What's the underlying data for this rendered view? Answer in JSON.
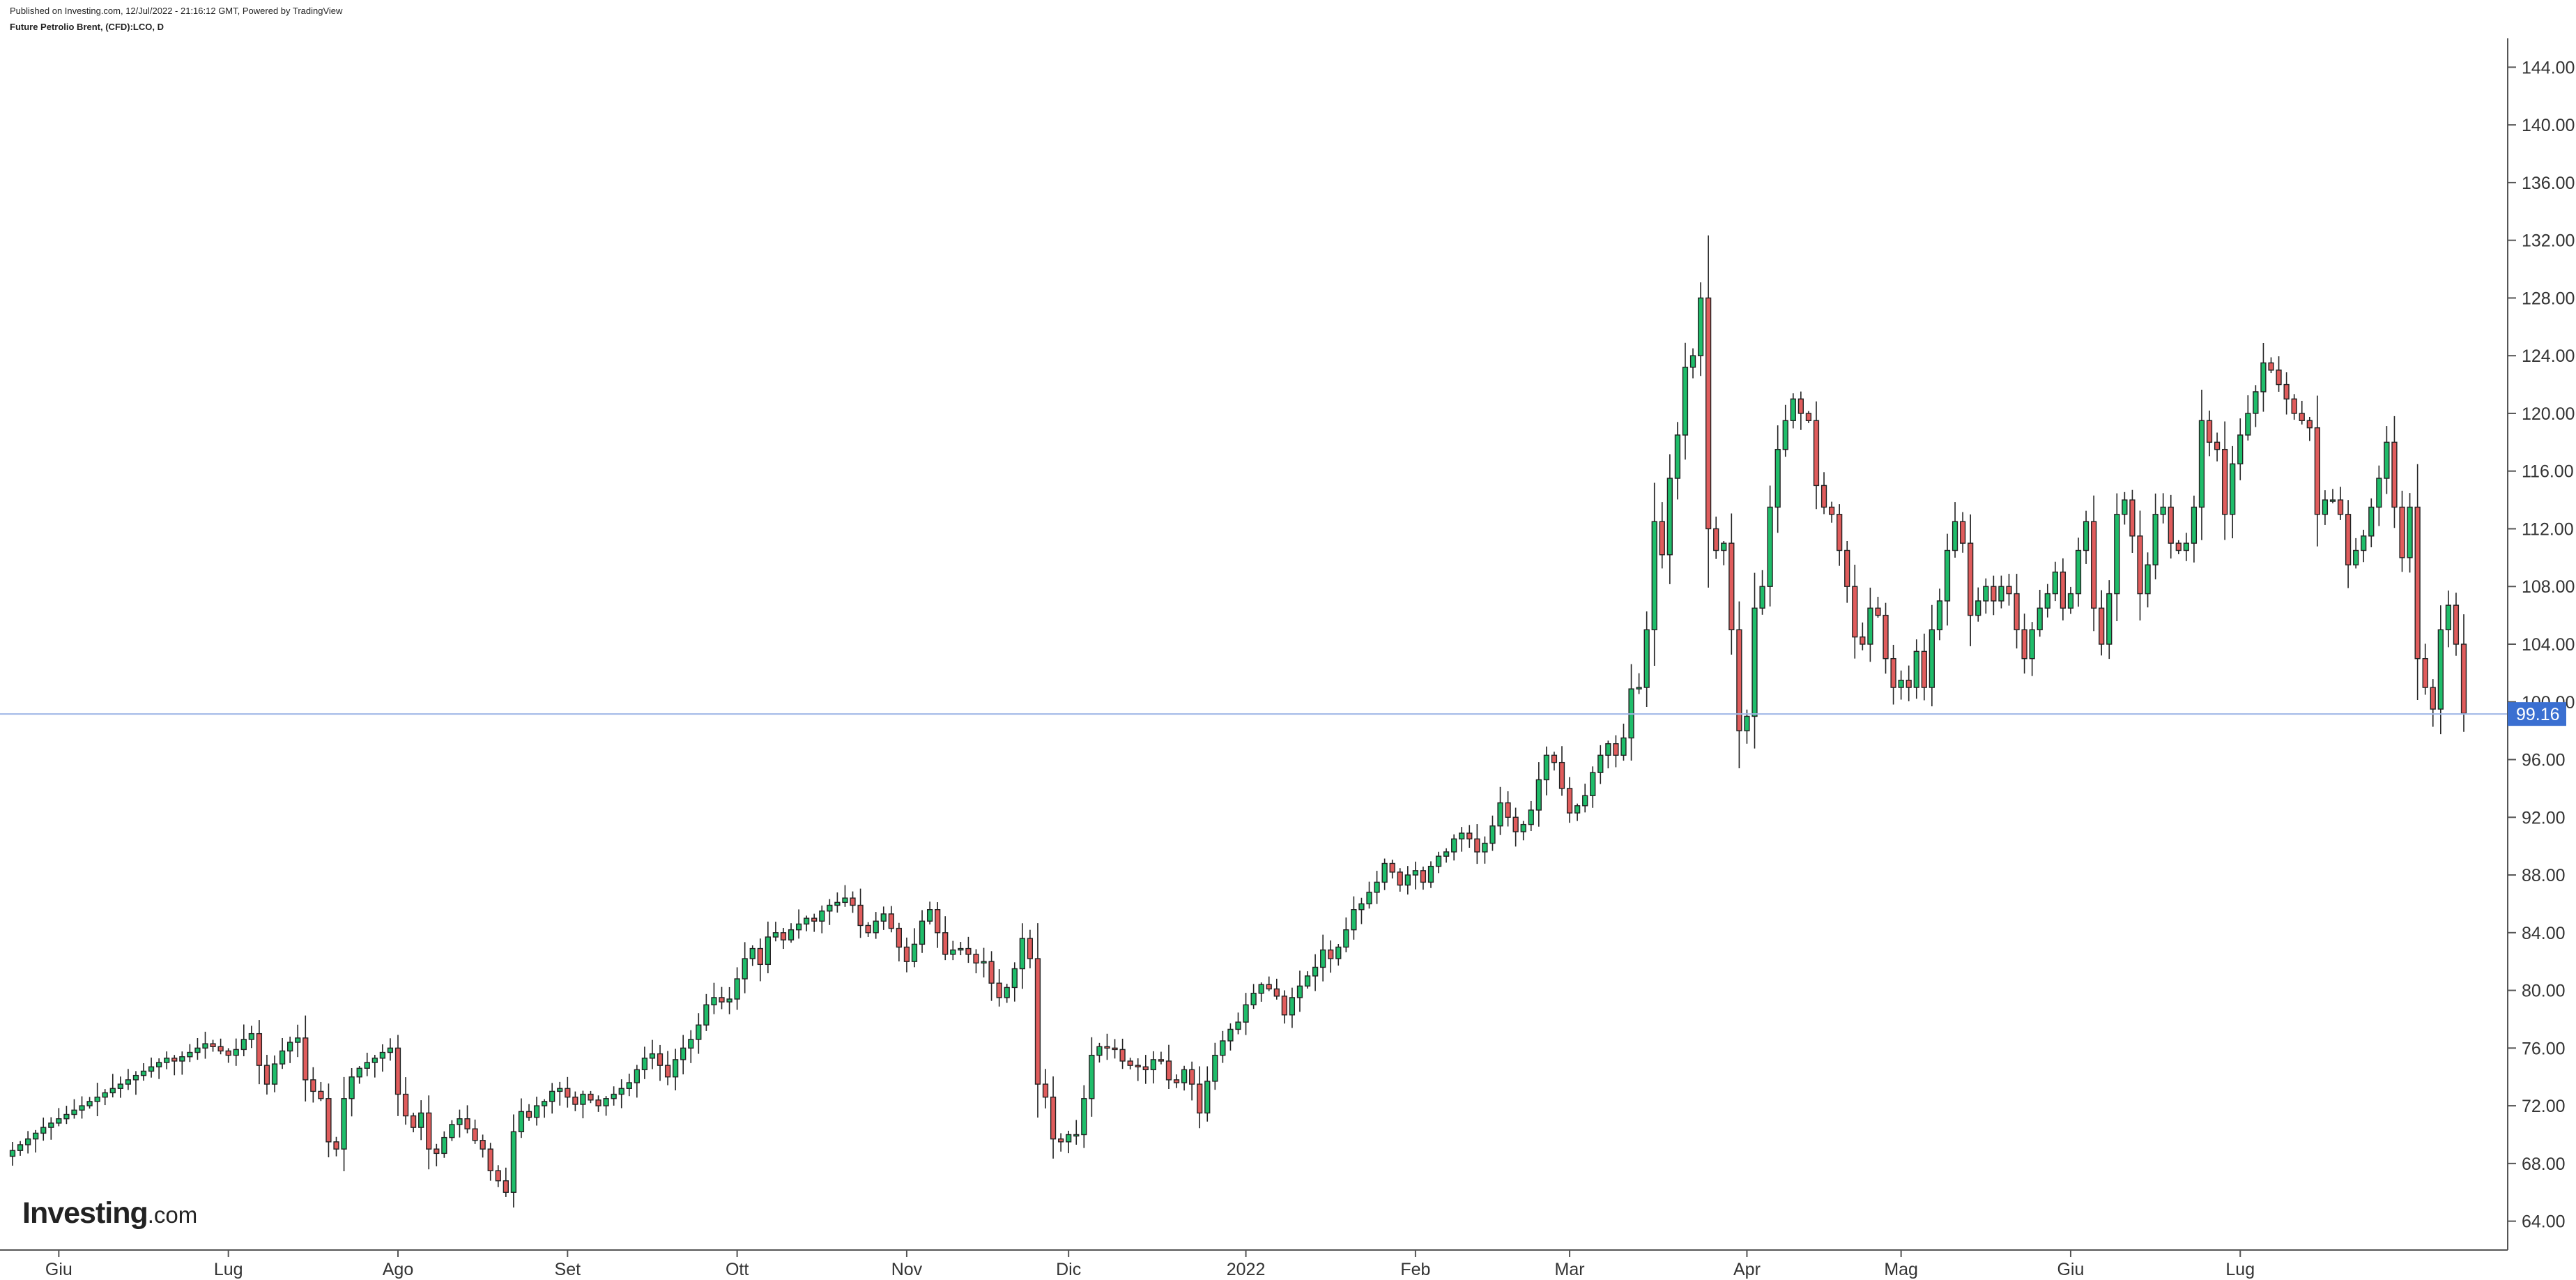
{
  "header": {
    "published": "Published on Investing.com, 12/Jul/2022 - 21:16:12 GMT, Powered by TradingView",
    "symbol": "Future Petrolio Brent, (CFD):LCO, D"
  },
  "logo": {
    "main": "Investing",
    "suffix": ".com"
  },
  "colors": {
    "up": "#1fbd6a",
    "down": "#e05c5c",
    "wick": "#222222",
    "price_line": "#9fb6e6",
    "price_label_bg": "#3a6fd1"
  },
  "chart_data": {
    "type": "candlestick",
    "title": "Future Petrolio Brent, (CFD):LCO, D",
    "ylim": [
      62,
      146
    ],
    "y_ticks": [
      64,
      68,
      72,
      76,
      80,
      84,
      88,
      92,
      96,
      100,
      104,
      108,
      112,
      116,
      120,
      124,
      128,
      132,
      136,
      140,
      144
    ],
    "y_tick_labels": [
      "64.00",
      "68.00",
      "72.00",
      "76.00",
      "80.00",
      "84.00",
      "88.00",
      "92.00",
      "96.00",
      "100.00",
      "104.00",
      "108.00",
      "112.00",
      "116.00",
      "120.00",
      "124.00",
      "128.00",
      "132.00",
      "136.00",
      "140.00",
      "144.00"
    ],
    "x_labels": [
      {
        "label": "Giu",
        "index": 6
      },
      {
        "label": "Lug",
        "index": 28
      },
      {
        "label": "Ago",
        "index": 50
      },
      {
        "label": "Set",
        "index": 72
      },
      {
        "label": "Ott",
        "index": 94
      },
      {
        "label": "Nov",
        "index": 116
      },
      {
        "label": "Dic",
        "index": 137
      },
      {
        "label": "2022",
        "index": 160
      },
      {
        "label": "Feb",
        "index": 182
      },
      {
        "label": "Mar",
        "index": 202
      },
      {
        "label": "Apr",
        "index": 225
      },
      {
        "label": "Mag",
        "index": 245
      },
      {
        "label": "Giu",
        "index": 267
      },
      {
        "label": "Lug",
        "index": 289
      }
    ],
    "last_price": 99.16,
    "last_price_label": "99.16",
    "closes": [
      68.9,
      69.3,
      69.7,
      70.1,
      70.5,
      70.8,
      71.1,
      71.4,
      71.7,
      72.0,
      72.3,
      72.6,
      72.9,
      73.2,
      73.5,
      73.8,
      74.1,
      74.4,
      74.7,
      75.0,
      75.3,
      75.1,
      75.4,
      75.7,
      76.0,
      76.3,
      76.1,
      75.8,
      75.5,
      75.9,
      76.6,
      77.0,
      74.8,
      73.5,
      74.9,
      75.8,
      76.4,
      76.7,
      73.8,
      73.0,
      72.5,
      69.5,
      69.0,
      72.5,
      74.0,
      74.6,
      75.0,
      75.3,
      75.7,
      76.0,
      72.8,
      71.3,
      70.5,
      71.5,
      69.0,
      68.7,
      69.8,
      70.7,
      71.1,
      70.4,
      69.6,
      69.0,
      67.5,
      66.8,
      66.0,
      70.2,
      71.6,
      71.2,
      72.0,
      72.3,
      73.0,
      73.2,
      72.6,
      72.1,
      72.8,
      72.4,
      72.0,
      72.5,
      72.8,
      73.2,
      73.6,
      74.5,
      75.3,
      75.6,
      74.8,
      74.0,
      75.2,
      76.0,
      76.6,
      77.6,
      79.0,
      79.5,
      79.2,
      79.4,
      80.8,
      82.2,
      82.9,
      81.8,
      83.7,
      84.0,
      83.5,
      84.2,
      84.6,
      85.0,
      84.8,
      85.5,
      85.9,
      86.1,
      86.4,
      85.9,
      84.5,
      84.0,
      84.8,
      85.3,
      84.3,
      83.0,
      82.0,
      83.2,
      84.8,
      85.6,
      84.0,
      82.5,
      82.8,
      82.9,
      82.5,
      81.9,
      82.0,
      80.5,
      79.5,
      80.2,
      81.5,
      83.6,
      82.2,
      73.5,
      72.6,
      69.7,
      69.5,
      70.0,
      70.0,
      72.5,
      75.5,
      76.1,
      76.0,
      75.9,
      75.1,
      74.8,
      74.7,
      74.5,
      75.2,
      75.1,
      73.8,
      73.6,
      74.5,
      73.5,
      71.5,
      73.7,
      75.5,
      76.5,
      77.3,
      77.8,
      79.0,
      79.8,
      80.4,
      80.1,
      79.6,
      78.3,
      79.5,
      80.3,
      81.0,
      81.6,
      82.8,
      82.2,
      83.0,
      84.2,
      85.6,
      86.0,
      86.8,
      87.5,
      88.8,
      88.2,
      87.3,
      88.0,
      88.3,
      87.5,
      88.6,
      89.3,
      89.6,
      90.5,
      90.9,
      90.5,
      89.6,
      90.2,
      91.4,
      93.0,
      92.0,
      91.0,
      91.5,
      92.5,
      94.6,
      96.3,
      95.8,
      94.0,
      92.3,
      92.8,
      93.5,
      95.1,
      96.3,
      97.1,
      96.3,
      97.5,
      100.9,
      101.0,
      105.0,
      112.5,
      110.2,
      115.5,
      118.5,
      123.2,
      124.0,
      128.0,
      112.0,
      110.5,
      111.0,
      105.0,
      98.0,
      99.0,
      106.5,
      108.0,
      113.5,
      117.5,
      119.5,
      121.0,
      120.0,
      119.5,
      115.0,
      113.5,
      113.0,
      110.5,
      108.0,
      104.5,
      104.0,
      106.5,
      106.0,
      103.0,
      101.0,
      101.5,
      101.0,
      103.5,
      101.0,
      105.0,
      107.0,
      110.5,
      112.5,
      111.0,
      106.0,
      107.0,
      108.0,
      107.0,
      108.0,
      107.5,
      105.0,
      103.0,
      105.0,
      106.5,
      107.5,
      109.0,
      106.5,
      107.5,
      110.5,
      112.5,
      106.5,
      104.0,
      107.5,
      113.0,
      114.0,
      111.5,
      107.5,
      109.5,
      113.0,
      113.5,
      111.0,
      110.5,
      111.0,
      113.5,
      119.5,
      118.0,
      117.5,
      113.0,
      116.5,
      118.5,
      120.0,
      121.5,
      123.5,
      123.0,
      122.0,
      121.0,
      120.0,
      119.5,
      119.0,
      113.0,
      114.0,
      114.0,
      113.0,
      109.5,
      110.5,
      111.5,
      113.5,
      115.5,
      118.0,
      113.5,
      110.0,
      113.5,
      103.0,
      101.0,
      99.5,
      105.0,
      106.7,
      104.0,
      99.2
    ]
  }
}
